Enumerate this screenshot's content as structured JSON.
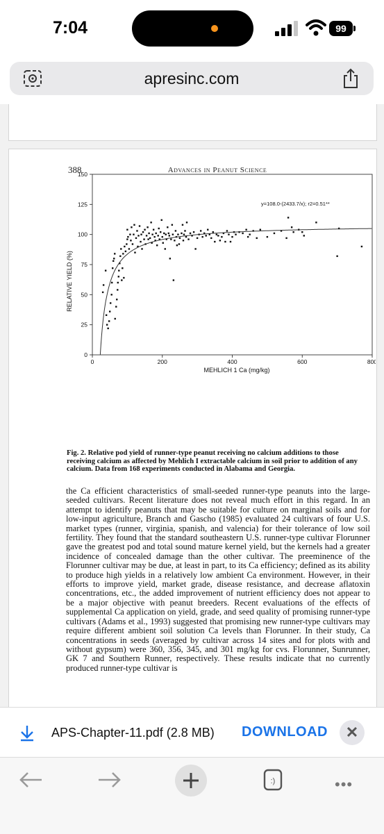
{
  "status_bar": {
    "time": "7:04",
    "battery": "99"
  },
  "address_bar": {
    "url": "apresinc.com"
  },
  "document": {
    "page_number": "388",
    "running_head": "Advances in Peanut Science",
    "caption": "Fig. 2.  Relative pod yield of runner-type peanut receiving no calcium additions to those receiving calcium as affected by Mehlich I extractable calcium in soil prior to addition of any calcium.  Data from 168 experiments conducted in Alabama and Georgia.",
    "body": "the Ca efficient characteristics of small-seeded runner-type peanuts into the large-seeded cultivars.  Recent literature does not reveal much effort in this regard.  In an attempt to identify peanuts that may be suitable for culture on marginal soils and for low-input agriculture, Branch and Gascho (1985) evaluated 24 cultivars of four U.S. market types (runner, virginia, spanish, and valencia) for their tolerance of low soil fertility.  They found that the standard southeastern U.S. runner-type cultivar Florunner gave the greatest pod and total sound mature kernel yield, but the kernels had a greater incidence of concealed damage than the other cultivar.  The preeminence of the Florunner cultivar may be due, at least in part, to its Ca efficiency; defined as its ability to produce high yields in a relatively low ambient Ca environment.  However, in their efforts to improve yield, market grade, disease resistance, and decrease aflatoxin concentrations, etc., the added improvement of nutrient efficiency does not appear to be a major objective with peanut breeders.  Recent evaluations of the effects of supplemental Ca application on yield, grade, and seed quality of promising runner-type cultivars (Adams et al., 1993) suggested that promising new runner-type cultivars may require different ambient soil solution Ca levels than Florunner.  In their study, Ca concentrations in seeds (averaged by cultivar across 14 sites and for plots with and without gypsum) were 360, 356, 345, and 301 mg/kg for cvs. Florunner, Sunrunner, GK 7 and Southern Runner, respectively.  These results indicate that no currently produced runner-type cultivar is"
  },
  "chart_data": {
    "type": "scatter",
    "xlabel": "MEHLICH 1 Ca (mg/kg)",
    "ylabel": "RELATIVE YIELD (%)",
    "equation": "y=108.0-(2433.7/x); r2=0.51**",
    "xlim": [
      0,
      800
    ],
    "ylim": [
      0,
      150
    ],
    "xticks": [
      0,
      200,
      400,
      600,
      800
    ],
    "yticks": [
      0,
      25,
      50,
      75,
      100,
      125,
      150
    ],
    "fit": {
      "a": 108.0,
      "b": 2433.7
    },
    "points": [
      [
        30,
        52
      ],
      [
        32,
        58
      ],
      [
        38,
        70
      ],
      [
        40,
        33
      ],
      [
        42,
        25
      ],
      [
        45,
        22
      ],
      [
        48,
        28
      ],
      [
        50,
        36
      ],
      [
        52,
        43
      ],
      [
        55,
        50
      ],
      [
        56,
        60
      ],
      [
        58,
        72
      ],
      [
        60,
        78
      ],
      [
        62,
        80
      ],
      [
        64,
        84
      ],
      [
        65,
        30
      ],
      [
        68,
        40
      ],
      [
        70,
        46
      ],
      [
        72,
        54
      ],
      [
        73,
        60
      ],
      [
        75,
        65
      ],
      [
        76,
        70
      ],
      [
        78,
        76
      ],
      [
        80,
        82
      ],
      [
        82,
        88
      ],
      [
        84,
        62
      ],
      [
        86,
        72
      ],
      [
        88,
        84
      ],
      [
        90,
        64
      ],
      [
        92,
        90
      ],
      [
        95,
        86
      ],
      [
        98,
        92
      ],
      [
        100,
        96
      ],
      [
        100,
        104
      ],
      [
        102,
        98
      ],
      [
        105,
        88
      ],
      [
        108,
        100
      ],
      [
        110,
        95
      ],
      [
        112,
        106
      ],
      [
        115,
        92
      ],
      [
        118,
        100
      ],
      [
        120,
        108
      ],
      [
        122,
        85
      ],
      [
        125,
        97
      ],
      [
        128,
        103
      ],
      [
        130,
        90
      ],
      [
        132,
        99
      ],
      [
        135,
        107
      ],
      [
        138,
        94
      ],
      [
        140,
        100
      ],
      [
        142,
        88
      ],
      [
        145,
        102
      ],
      [
        148,
        96
      ],
      [
        150,
        104
      ],
      [
        152,
        92
      ],
      [
        155,
        99
      ],
      [
        158,
        106
      ],
      [
        160,
        96
      ],
      [
        162,
        101
      ],
      [
        165,
        97
      ],
      [
        168,
        110
      ],
      [
        170,
        93
      ],
      [
        172,
        100
      ],
      [
        175,
        104
      ],
      [
        178,
        98
      ],
      [
        180,
        95
      ],
      [
        182,
        101
      ],
      [
        185,
        91
      ],
      [
        188,
        99
      ],
      [
        190,
        105
      ],
      [
        192,
        96
      ],
      [
        195,
        102
      ],
      [
        198,
        112
      ],
      [
        200,
        98
      ],
      [
        202,
        93
      ],
      [
        205,
        101
      ],
      [
        208,
        88
      ],
      [
        210,
        100
      ],
      [
        212,
        96
      ],
      [
        215,
        106
      ],
      [
        218,
        101
      ],
      [
        220,
        99
      ],
      [
        222,
        80
      ],
      [
        225,
        96
      ],
      [
        228,
        108
      ],
      [
        230,
        100
      ],
      [
        232,
        62
      ],
      [
        235,
        95
      ],
      [
        238,
        103
      ],
      [
        240,
        98
      ],
      [
        242,
        91
      ],
      [
        245,
        100
      ],
      [
        248,
        92
      ],
      [
        250,
        97
      ],
      [
        255,
        101
      ],
      [
        258,
        108
      ],
      [
        260,
        95
      ],
      [
        262,
        100
      ],
      [
        265,
        103
      ],
      [
        268,
        98
      ],
      [
        270,
        110
      ],
      [
        275,
        96
      ],
      [
        280,
        101
      ],
      [
        285,
        99
      ],
      [
        290,
        102
      ],
      [
        295,
        88
      ],
      [
        300,
        97
      ],
      [
        305,
        100
      ],
      [
        310,
        103
      ],
      [
        315,
        98
      ],
      [
        320,
        101
      ],
      [
        325,
        99
      ],
      [
        330,
        104
      ],
      [
        335,
        100
      ],
      [
        340,
        97
      ],
      [
        345,
        102
      ],
      [
        350,
        94
      ],
      [
        355,
        100
      ],
      [
        360,
        99
      ],
      [
        365,
        95
      ],
      [
        370,
        98
      ],
      [
        375,
        101
      ],
      [
        380,
        94
      ],
      [
        385,
        103
      ],
      [
        390,
        100
      ],
      [
        395,
        94
      ],
      [
        400,
        98
      ],
      [
        405,
        102
      ],
      [
        410,
        100
      ],
      [
        420,
        102
      ],
      [
        430,
        101
      ],
      [
        440,
        104
      ],
      [
        445,
        98
      ],
      [
        450,
        100
      ],
      [
        460,
        103
      ],
      [
        470,
        97
      ],
      [
        480,
        104
      ],
      [
        500,
        98
      ],
      [
        520,
        101
      ],
      [
        540,
        103
      ],
      [
        555,
        97
      ],
      [
        560,
        114
      ],
      [
        570,
        106
      ],
      [
        575,
        102
      ],
      [
        590,
        104
      ],
      [
        600,
        102
      ],
      [
        605,
        99
      ],
      [
        640,
        110
      ],
      [
        700,
        82
      ],
      [
        705,
        105
      ],
      [
        770,
        90
      ]
    ]
  },
  "download": {
    "file": "APS-Chapter-11.pdf (2.8 MB)",
    "button": "DOWNLOAD"
  }
}
